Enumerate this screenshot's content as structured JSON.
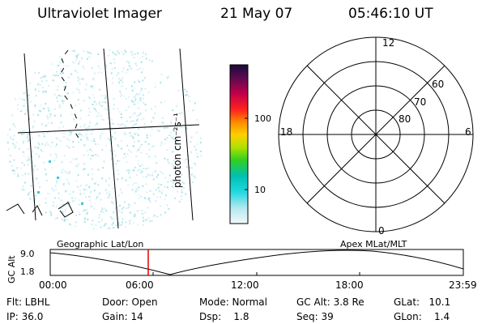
{
  "header": {
    "title": "Ultraviolet Imager",
    "date": "21 May 07",
    "time": "05:46:10 UT"
  },
  "colorbar": {
    "label": "photon cm⁻²s⁻¹",
    "ticks": [
      "100",
      "10"
    ]
  },
  "polar": {
    "lat_labels": [
      "80",
      "70",
      "60"
    ],
    "mlt_labels": {
      "top": "12",
      "left": "18",
      "right": "6",
      "bottom": "0"
    }
  },
  "altplot": {
    "ylabel": "GC Alt",
    "yticks": [
      "9.0",
      "1.8"
    ],
    "left_label": "Geographic Lat/Lon",
    "right_label": "Apex MLat/MLT",
    "xticks": [
      "00:00",
      "06:00",
      "12:00",
      "18:00",
      "23:59"
    ],
    "cursor_color": "#e00000"
  },
  "info": {
    "flt": "Flt: LBHL",
    "ip": "IP: 36.0",
    "door": "Door: Open",
    "gain": "Gain: 14",
    "mode": "Mode: Normal",
    "dsp": "Dsp:    1.8",
    "gcalt": "GC Alt: 3.8 Re",
    "seq": "Seq: 39",
    "glat": "GLat:   10.1",
    "glon": "GLon:    1.4"
  }
}
